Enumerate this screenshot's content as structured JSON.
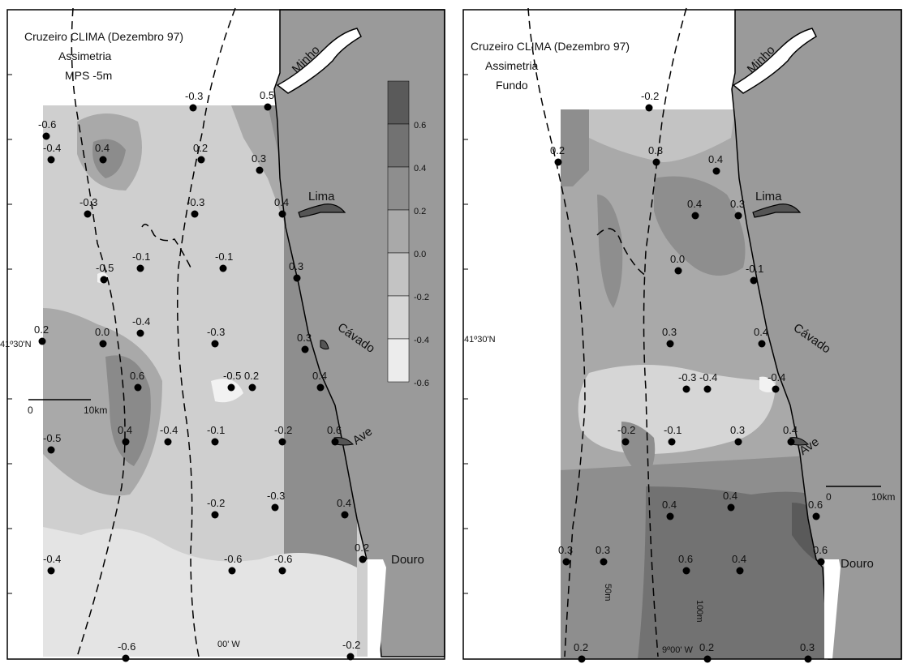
{
  "panels": [
    {
      "title_lines": [
        "Cruzeiro CLIMA (Dezembro 97)",
        "Assimetria",
        "MPS  -5m"
      ],
      "rivers": [
        "Minho",
        "Lima",
        "Cávado",
        "Ave",
        "Douro"
      ],
      "coord_labels": [
        "41º30'N",
        "00' W"
      ],
      "scale": {
        "zero": "0",
        "end": "10km"
      },
      "legend": {
        "levels": [
          "0.6",
          "0.4",
          "0.2",
          "0.0",
          "-0.2",
          "-0.4",
          "-0.6"
        ]
      },
      "stations": [
        "-0.3",
        "0.5",
        "-0.6",
        "-0.4",
        "0.4",
        "0.2",
        "0.3",
        "-0.3",
        "-0.3",
        "0.4",
        "-0.5",
        "-0.1",
        "-0.1",
        "0.3",
        "0.2",
        "0.0",
        "-0.4",
        "-0.3",
        "0.3",
        "0.6",
        "-0.5",
        "0.2",
        "0.4",
        "0.4",
        "-0.4",
        "-0.1",
        "-0.2",
        "0.6",
        "-0.5",
        "-0.2",
        "-0.3",
        "0.4",
        "-0.4",
        "-0.6",
        "-0.6",
        "0.2",
        "-0.6",
        "-0.2"
      ],
      "colors": {
        "land": "#9a9a9a",
        "coast": "#000000"
      }
    },
    {
      "title_lines": [
        "Cruzeiro CLIMA (Dezembro 97)",
        "Assimetria",
        "Fundo"
      ],
      "rivers": [
        "Minho",
        "Lima",
        "Cávado",
        "Ave",
        "Douro"
      ],
      "coord_labels": [
        "41º30'N",
        "9º00' W"
      ],
      "scale": {
        "zero": "0",
        "end": "10km"
      },
      "isobaths": [
        "50m",
        "100m"
      ],
      "stations": [
        "-0.2",
        "0.2",
        "0.3",
        "0.4",
        "0.4",
        "0.3",
        "0.0",
        "-0.1",
        "0.3",
        "0.4",
        "-0.3",
        "-0.4",
        "-0.4",
        "-0.2",
        "-0.1",
        "0.3",
        "0.4",
        "0.4",
        "0.4",
        "0.6",
        "0.3",
        "0.3",
        "0.6",
        "0.4",
        "0.6",
        "0.2",
        "0.2",
        "0.3"
      ],
      "colors": {
        "land": "#9a9a9a",
        "coast": "#000000"
      }
    }
  ]
}
